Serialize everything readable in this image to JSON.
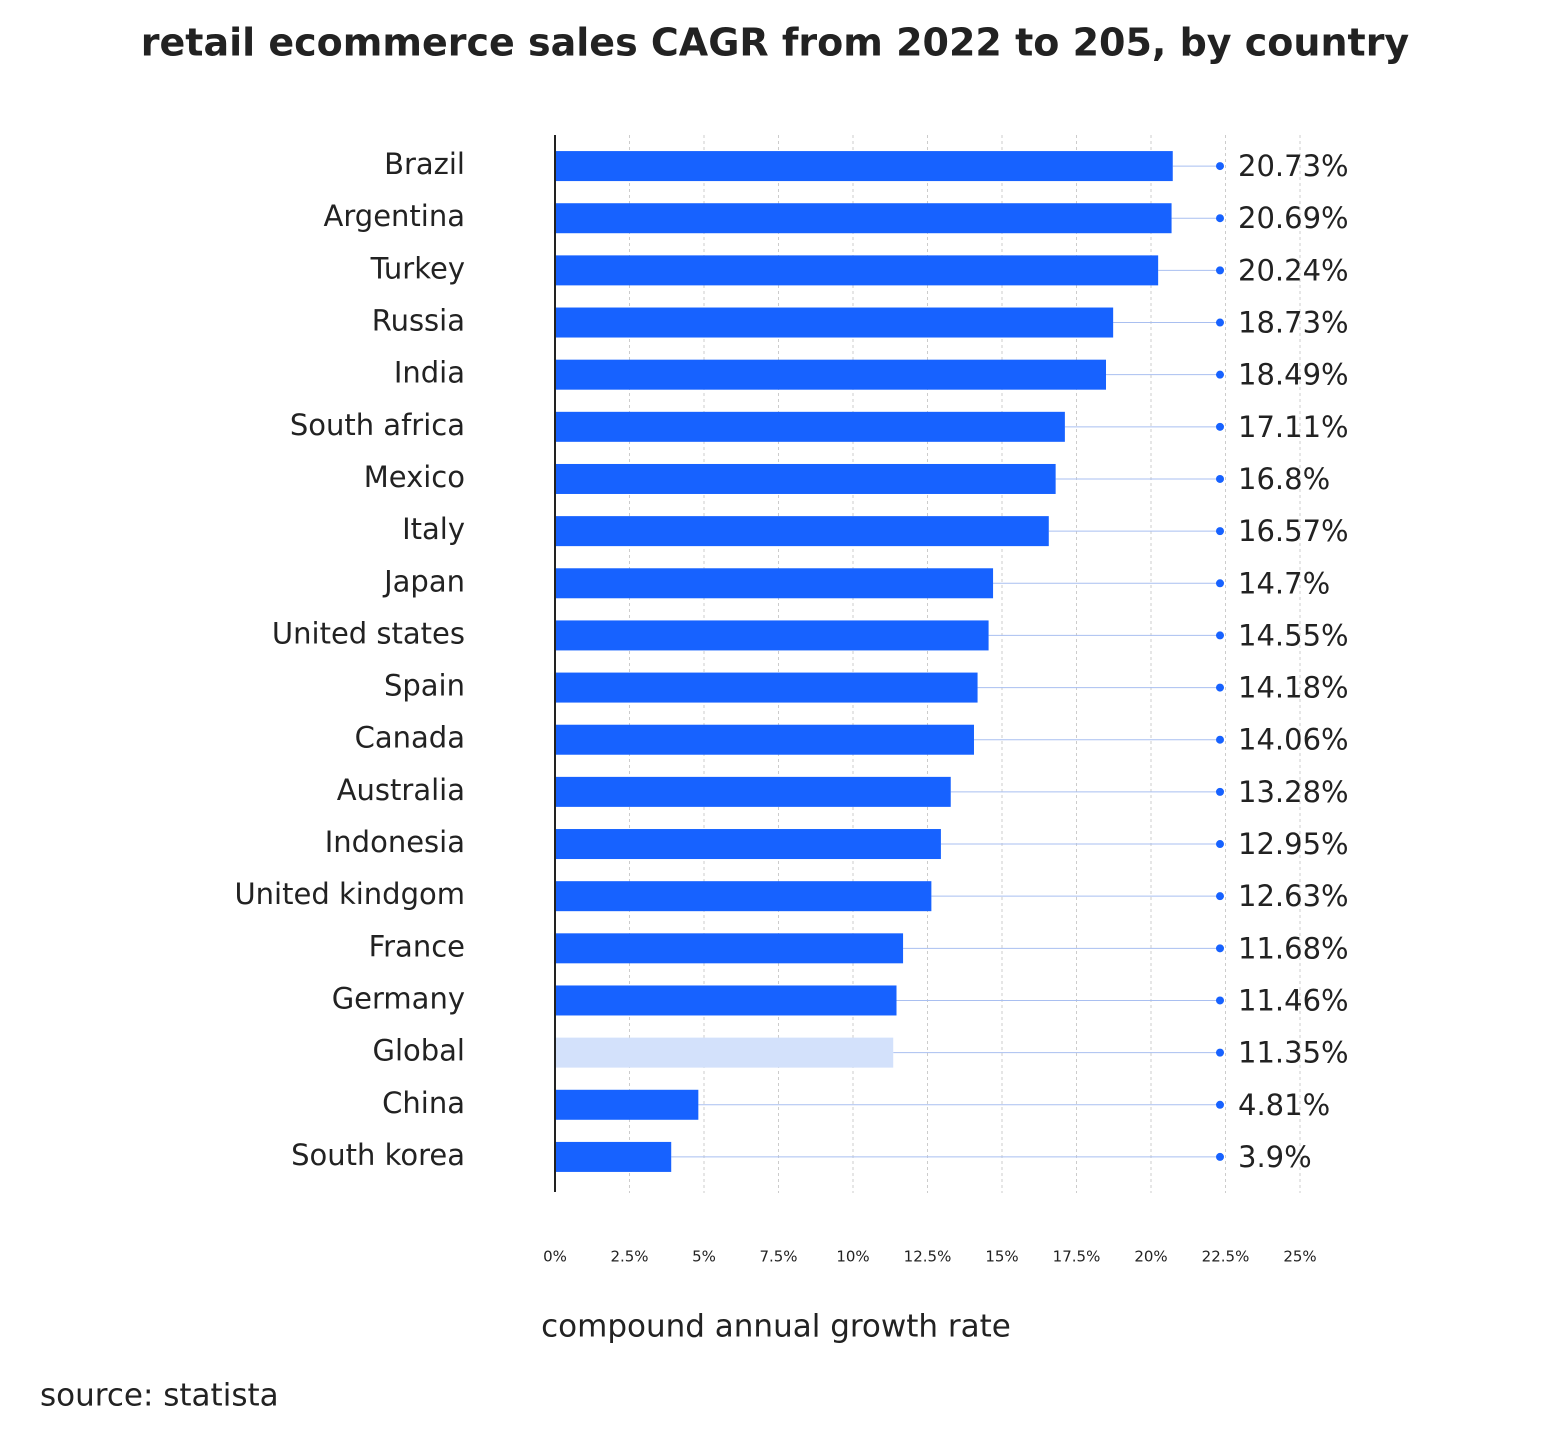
{
  "chart_data": {
    "type": "barh",
    "title": "retail ecommerce sales CAGR from 2022 to 205, by country",
    "x_label": "compound annual growth rate",
    "source": "source: statista",
    "categories": [
      "Brazil",
      "Argentina",
      "Turkey",
      "Russia",
      "India",
      "South africa",
      "Mexico",
      "Italy",
      "Japan",
      "United states",
      "Spain",
      "Canada",
      "Australia",
      "Indonesia",
      "United kindgom",
      "France",
      "Germany",
      "Global",
      "China",
      "South korea"
    ],
    "values": [
      20.73,
      20.69,
      20.24,
      18.73,
      18.49,
      17.11,
      16.8,
      16.57,
      14.7,
      14.55,
      14.18,
      14.06,
      13.28,
      12.95,
      12.63,
      11.68,
      11.46,
      11.35,
      4.81,
      3.9
    ],
    "value_labels": [
      "20.73%",
      "20.69%",
      "20.24%",
      "18.73%",
      "18.49%",
      "17.11%",
      "16.8%",
      "16.57%",
      "14.7%",
      "14.55%",
      "14.18%",
      "14.06%",
      "13.28%",
      "12.95%",
      "12.63%",
      "11.68%",
      "11.46%",
      "11.35%",
      "4.81%",
      "3.9%"
    ],
    "colors": [
      "#1762ff",
      "#1762ff",
      "#1762ff",
      "#1762ff",
      "#1762ff",
      "#1762ff",
      "#1762ff",
      "#1762ff",
      "#1762ff",
      "#1762ff",
      "#1762ff",
      "#1762ff",
      "#1762ff",
      "#1762ff",
      "#1762ff",
      "#1762ff",
      "#1762ff",
      "#d3e1fb",
      "#1762ff",
      "#1762ff"
    ],
    "xlim": [
      0,
      25
    ],
    "xticks": [
      {
        "value": 0,
        "label": "0%"
      },
      {
        "value": 2.5,
        "label": "2.5%"
      },
      {
        "value": 5,
        "label": "5%"
      },
      {
        "value": 7.5,
        "label": "7.5%"
      },
      {
        "value": 10,
        "label": "10%"
      },
      {
        "value": 12.5,
        "label": "12.5%"
      },
      {
        "value": 15,
        "label": "15%"
      },
      {
        "value": 17.5,
        "label": "17.5%"
      },
      {
        "value": 20,
        "label": "20%"
      },
      {
        "value": 22.5,
        "label": "22.5%"
      },
      {
        "value": 25,
        "label": "25%"
      }
    ],
    "grid": true
  }
}
